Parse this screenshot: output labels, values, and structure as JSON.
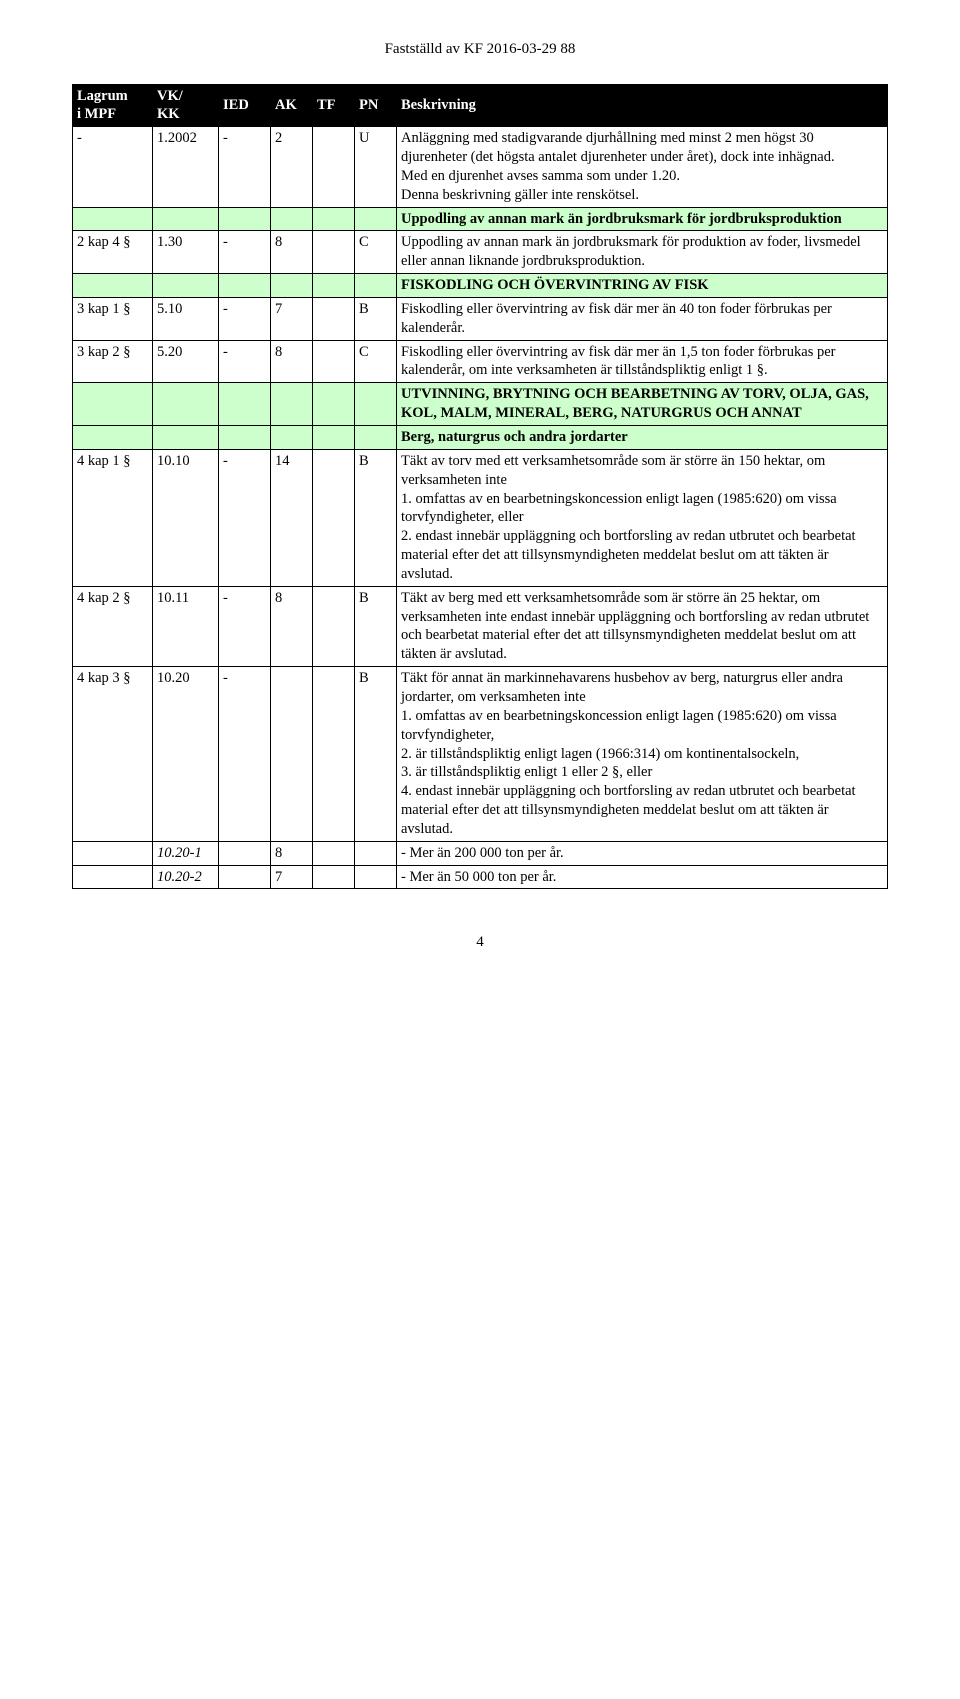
{
  "header": "Fastställd av KF 2016-03-29 88",
  "columns": {
    "lagrum_a": "Lagrum",
    "lagrum_b": "i MPF",
    "vk_a": "VK/",
    "vk_b": "KK",
    "ied": "IED",
    "ak": "AK",
    "tf": "TF",
    "pn": "PN",
    "besk": "Beskrivning"
  },
  "rows": [
    {
      "type": "data",
      "lagrum": "-",
      "vk": "1.2002",
      "ied": "-",
      "ak": "2",
      "tf": "",
      "pn": "U",
      "text": "Anläggning med stadigvarande djurhållning med minst 2 men högst 30 djurenheter (det högsta antalet djurenheter under året), dock inte inhägnad.\nMed en djurenhet avses samma som under 1.20.\nDenna beskrivning gäller inte renskötsel."
    },
    {
      "type": "section",
      "text": "Uppodling av annan mark än jordbruksmark för jordbruksproduktion"
    },
    {
      "type": "data",
      "lagrum": "2 kap 4 §",
      "vk": "1.30",
      "ied": "-",
      "ak": "8",
      "tf": "",
      "pn": "C",
      "text": "Uppodling av annan mark än jordbruksmark för produktion av foder, livsmedel eller annan liknande jordbruksproduktion."
    },
    {
      "type": "section",
      "text": "FISKODLING OCH ÖVERVINTRING AV FISK"
    },
    {
      "type": "data",
      "lagrum": "3 kap 1 §",
      "vk": "5.10",
      "ied": "-",
      "ak": "7",
      "tf": "",
      "pn": "B",
      "text": "Fiskodling eller övervintring av fisk där mer än 40 ton foder förbrukas per kalenderår."
    },
    {
      "type": "data",
      "lagrum": "3 kap 2 §",
      "vk": "5.20",
      "ied": "-",
      "ak": "8",
      "tf": "",
      "pn": "C",
      "text": "Fiskodling eller övervintring av fisk där mer än 1,5 ton foder förbrukas per kalenderår, om inte verksamheten är tillståndspliktig enligt 1 §."
    },
    {
      "type": "section",
      "text": "UTVINNING, BRYTNING OCH BEARBETNING AV TORV, OLJA, GAS, KOL, MALM, MINERAL, BERG, NATURGRUS OCH ANNAT"
    },
    {
      "type": "section",
      "text": "Berg, naturgrus och andra jordarter"
    },
    {
      "type": "data",
      "lagrum": "4 kap 1 §",
      "vk": "10.10",
      "ied": "-",
      "ak": "14",
      "tf": "",
      "pn": "B",
      "text": "Täkt av torv med ett verksamhetsområde som är större än 150 hektar, om verksamheten inte\n1. omfattas av en bearbetningskoncession enligt lagen (1985:620) om vissa torvfyndigheter, eller\n2. endast innebär uppläggning och bortforsling av redan utbrutet och bearbetat material efter det att tillsynsmyndigheten meddelat beslut om att täkten är avslutad."
    },
    {
      "type": "data",
      "lagrum": "4 kap 2 §",
      "vk": "10.11",
      "ied": "-",
      "ak": "8",
      "tf": "",
      "pn": "B",
      "text": "Täkt av berg med ett verksamhetsområde som är större än 25 hektar, om verksamheten inte endast innebär uppläggning och bortforsling av redan utbrutet och bearbetat material efter det att tillsynsmyndigheten meddelat beslut om att täkten är avslutad."
    },
    {
      "type": "data",
      "lagrum": "4 kap 3 §",
      "vk": "10.20",
      "ied": "-",
      "ak": "",
      "tf": "",
      "pn": "B",
      "text": "Täkt för annat än markinnehavarens husbehov av berg, naturgrus eller andra jordarter, om verksamheten inte\n1. omfattas av en bearbetningskoncession enligt lagen (1985:620) om vissa torvfyndigheter,\n2. är tillståndspliktig enligt lagen (1966:314) om kontinentalsockeln,\n3. är tillståndspliktig enligt 1 eller 2 §, eller\n4. endast innebär uppläggning och bortforsling av redan utbrutet och bearbetat material efter det att tillsynsmyndigheten meddelat beslut om att täkten är avslutad."
    },
    {
      "type": "sub",
      "lagrum": "",
      "vk": "10.20-1",
      "ied": "",
      "ak": "8",
      "tf": "",
      "pn": "",
      "text": "- Mer än 200 000 ton per år.",
      "italic": true
    },
    {
      "type": "sub",
      "lagrum": "",
      "vk": "10.20-2",
      "ied": "",
      "ak": "7",
      "tf": "",
      "pn": "",
      "text": "- Mer än 50 000 ton per år.",
      "italic": true
    }
  ],
  "page_number": "4",
  "colors": {
    "section_bg": "#ccffcc",
    "header_bg": "#000000",
    "header_fg": "#ffffff",
    "border": "#000000",
    "page_bg": "#ffffff",
    "text": "#000000"
  }
}
